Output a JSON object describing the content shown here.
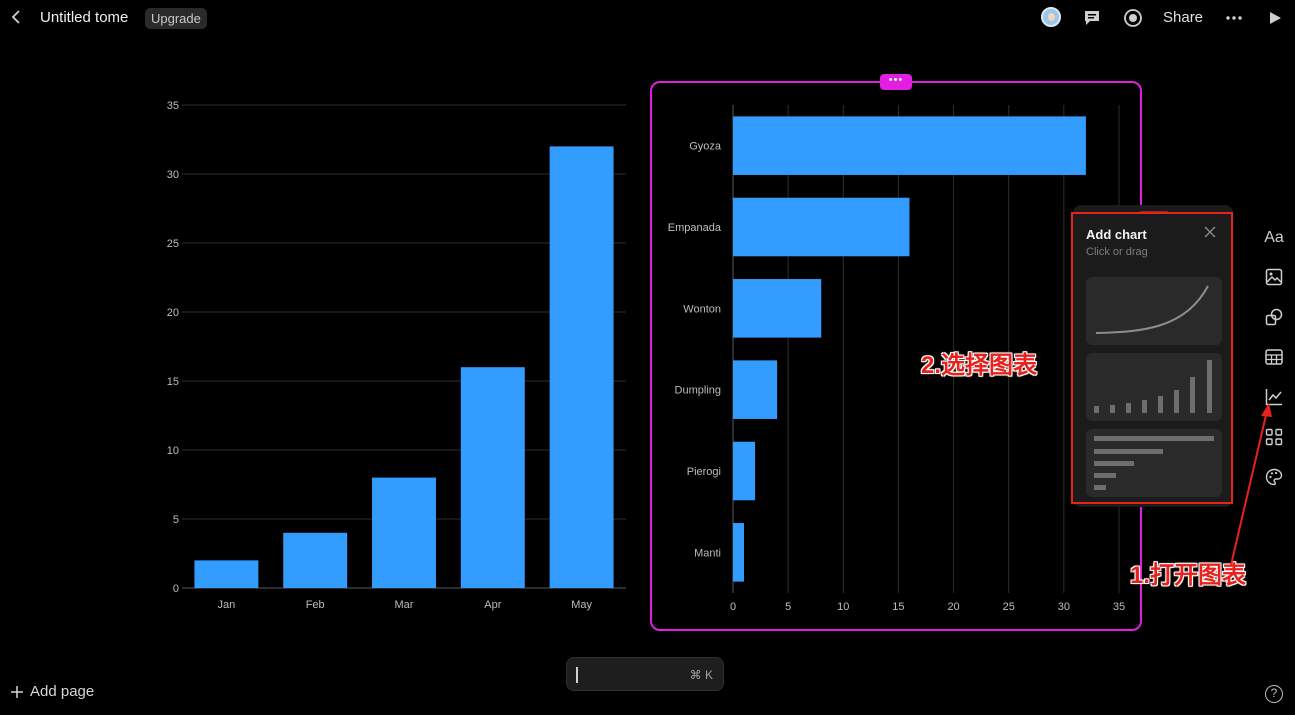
{
  "header": {
    "back_icon": "chevron-left-icon",
    "title": "Untitled tome",
    "upgrade_label": "Upgrade",
    "share_label": "Share",
    "icons": [
      "avatar",
      "comment-icon",
      "record-icon",
      "more-icon",
      "play-icon"
    ]
  },
  "chart_data": [
    {
      "type": "bar",
      "categories": [
        "Jan",
        "Feb",
        "Mar",
        "Apr",
        "May"
      ],
      "values": [
        2,
        4,
        8,
        16,
        32
      ],
      "ylim": [
        0,
        35
      ],
      "yticks": [
        0,
        5,
        10,
        15,
        20,
        25,
        30,
        35
      ],
      "grid": true,
      "color": "#339cff"
    },
    {
      "type": "bar",
      "orientation": "horizontal",
      "categories": [
        "Gyoza",
        "Empanada",
        "Wonton",
        "Dumpling",
        "Pierogi",
        "Manti"
      ],
      "values": [
        32,
        16,
        8,
        4,
        2,
        1
      ],
      "xlim": [
        0,
        35
      ],
      "xticks": [
        0,
        5,
        10,
        15,
        20,
        25,
        30,
        35
      ],
      "grid": true,
      "color": "#339cff"
    }
  ],
  "add_chart_panel": {
    "title": "Add chart",
    "subtitle": "Click or drag",
    "close_icon": "close-icon",
    "templates": [
      "line-chart-template",
      "bar-chart-template",
      "horizontal-bar-chart-template"
    ]
  },
  "toolbar": {
    "text_label": "Aa",
    "items": [
      "text-icon",
      "image-icon",
      "shapes-icon",
      "table-icon",
      "chart-icon",
      "grid-icon",
      "palette-icon"
    ]
  },
  "annotations": {
    "step1": "1.打开图表",
    "step2": "2.选择图表",
    "color": "#e8211c"
  },
  "footer": {
    "add_page_label": "Add page",
    "command_shortcut": "⌘ K",
    "help_label": "?"
  },
  "colors": {
    "background": "#000000",
    "bar": "#339cff",
    "selection": "#e11ee1"
  }
}
